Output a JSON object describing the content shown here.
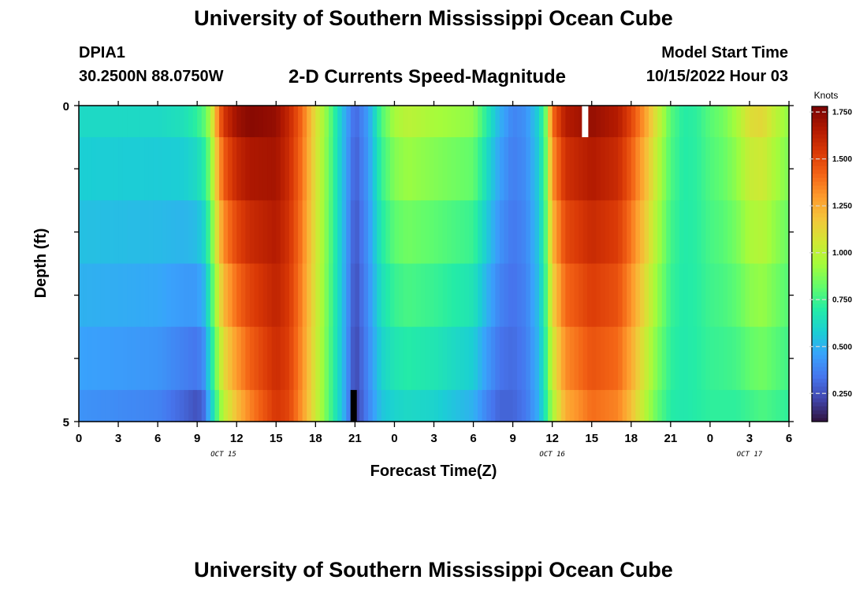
{
  "header": {
    "title": "University of Southern Mississippi Ocean Cube",
    "station_id": "DPIA1",
    "coords": "30.2500N  88.0750W",
    "subtitle": "2-D Currents Speed-Magnitude",
    "model_start_label": "Model Start Time",
    "model_start_value": "10/15/2022 Hour 03"
  },
  "footer": {
    "title": "University of Southern Mississippi Ocean Cube"
  },
  "colors": {
    "colormap": [
      "#30123b",
      "#4145ab",
      "#4675ed",
      "#39a2fc",
      "#1bcfd4",
      "#24eca6",
      "#61fc6c",
      "#a4fc3b",
      "#d1e834",
      "#f3c63a",
      "#fe9b2d",
      "#f36315",
      "#d93806",
      "#b11901",
      "#7a0403"
    ],
    "missing_white": "#ffffff",
    "missing_black": "#000000"
  },
  "chart_data": {
    "type": "heatmap",
    "title": "2-D Currents Speed-Magnitude",
    "xlabel": "Forecast Time(Z)",
    "ylabel": "Depth (ft)",
    "colorbar_label": "Knots",
    "x_tick_labels": [
      "0",
      "3",
      "6",
      "9",
      "12",
      "15",
      "18",
      "21",
      "0",
      "3",
      "6",
      "9",
      "12",
      "15",
      "18",
      "21",
      "0",
      "3",
      "6"
    ],
    "x_tick_hours": [
      0,
      3,
      6,
      9,
      12,
      15,
      18,
      21,
      24,
      27,
      30,
      33,
      36,
      39,
      42,
      45,
      48,
      51,
      54
    ],
    "date_labels": [
      {
        "text": "OCT 15",
        "hour": 11
      },
      {
        "text": "OCT 16",
        "hour": 36
      },
      {
        "text": "OCT 17",
        "hour": 51
      }
    ],
    "y_tick_labels": [
      "0",
      "5"
    ],
    "y_range": [
      0,
      5
    ],
    "x_range": [
      0,
      54
    ],
    "colorbar_range": [
      0.1,
      1.78
    ],
    "colorbar_ticks": [
      0.25,
      0.5,
      0.75,
      1.0,
      1.25,
      1.5,
      1.75
    ],
    "colorbar_tick_labels": [
      "0.250",
      "0.500",
      "0.750",
      "1.000",
      "1.250",
      "1.500",
      "1.750"
    ],
    "depth_levels_ft": [
      0,
      0.5,
      1.5,
      2.5,
      3.5,
      4.5,
      5
    ],
    "speed_key_hours": [
      0,
      3,
      6,
      8,
      9,
      9.5,
      10,
      10.5,
      11,
      12,
      13,
      15,
      16,
      17,
      18,
      19,
      20,
      21,
      22,
      23,
      24,
      25,
      27,
      30,
      31,
      32,
      33,
      34,
      35,
      35.5,
      36,
      37,
      39,
      41,
      42,
      43,
      44,
      45,
      46,
      47,
      48,
      49,
      50,
      51,
      52,
      53,
      54
    ],
    "speed_key_values_surface": [
      0.62,
      0.62,
      0.62,
      0.65,
      0.72,
      0.8,
      0.95,
      1.3,
      1.55,
      1.7,
      1.75,
      1.72,
      1.6,
      1.4,
      1.1,
      0.85,
      0.55,
      0.3,
      0.45,
      0.78,
      0.95,
      1.0,
      0.95,
      0.9,
      0.7,
      0.5,
      0.38,
      0.42,
      0.6,
      0.85,
      1.4,
      1.65,
      1.72,
      1.65,
      1.5,
      1.3,
      1.05,
      0.8,
      0.7,
      0.72,
      0.8,
      0.85,
      0.95,
      1.1,
      1.12,
      1.0,
      0.9
    ],
    "speed_key_values_bottom": [
      0.42,
      0.4,
      0.38,
      0.3,
      0.25,
      0.32,
      0.55,
      0.78,
      1.0,
      1.2,
      1.35,
      1.55,
      1.5,
      1.3,
      1.05,
      0.8,
      0.55,
      0.2,
      0.38,
      0.55,
      0.6,
      0.62,
      0.6,
      0.5,
      0.38,
      0.3,
      0.3,
      0.35,
      0.5,
      0.7,
      0.95,
      1.25,
      1.4,
      1.35,
      1.2,
      1.0,
      0.82,
      0.7,
      0.68,
      0.7,
      0.72,
      0.72,
      0.72,
      0.75,
      0.78,
      0.75,
      0.72
    ],
    "masked_cells": [
      {
        "hour": 38.5,
        "depth_from": 0,
        "depth_to": 0.5,
        "color": "white"
      },
      {
        "hour": 20.9,
        "depth_from": 4.5,
        "depth_to": 5,
        "color": "black"
      }
    ]
  }
}
